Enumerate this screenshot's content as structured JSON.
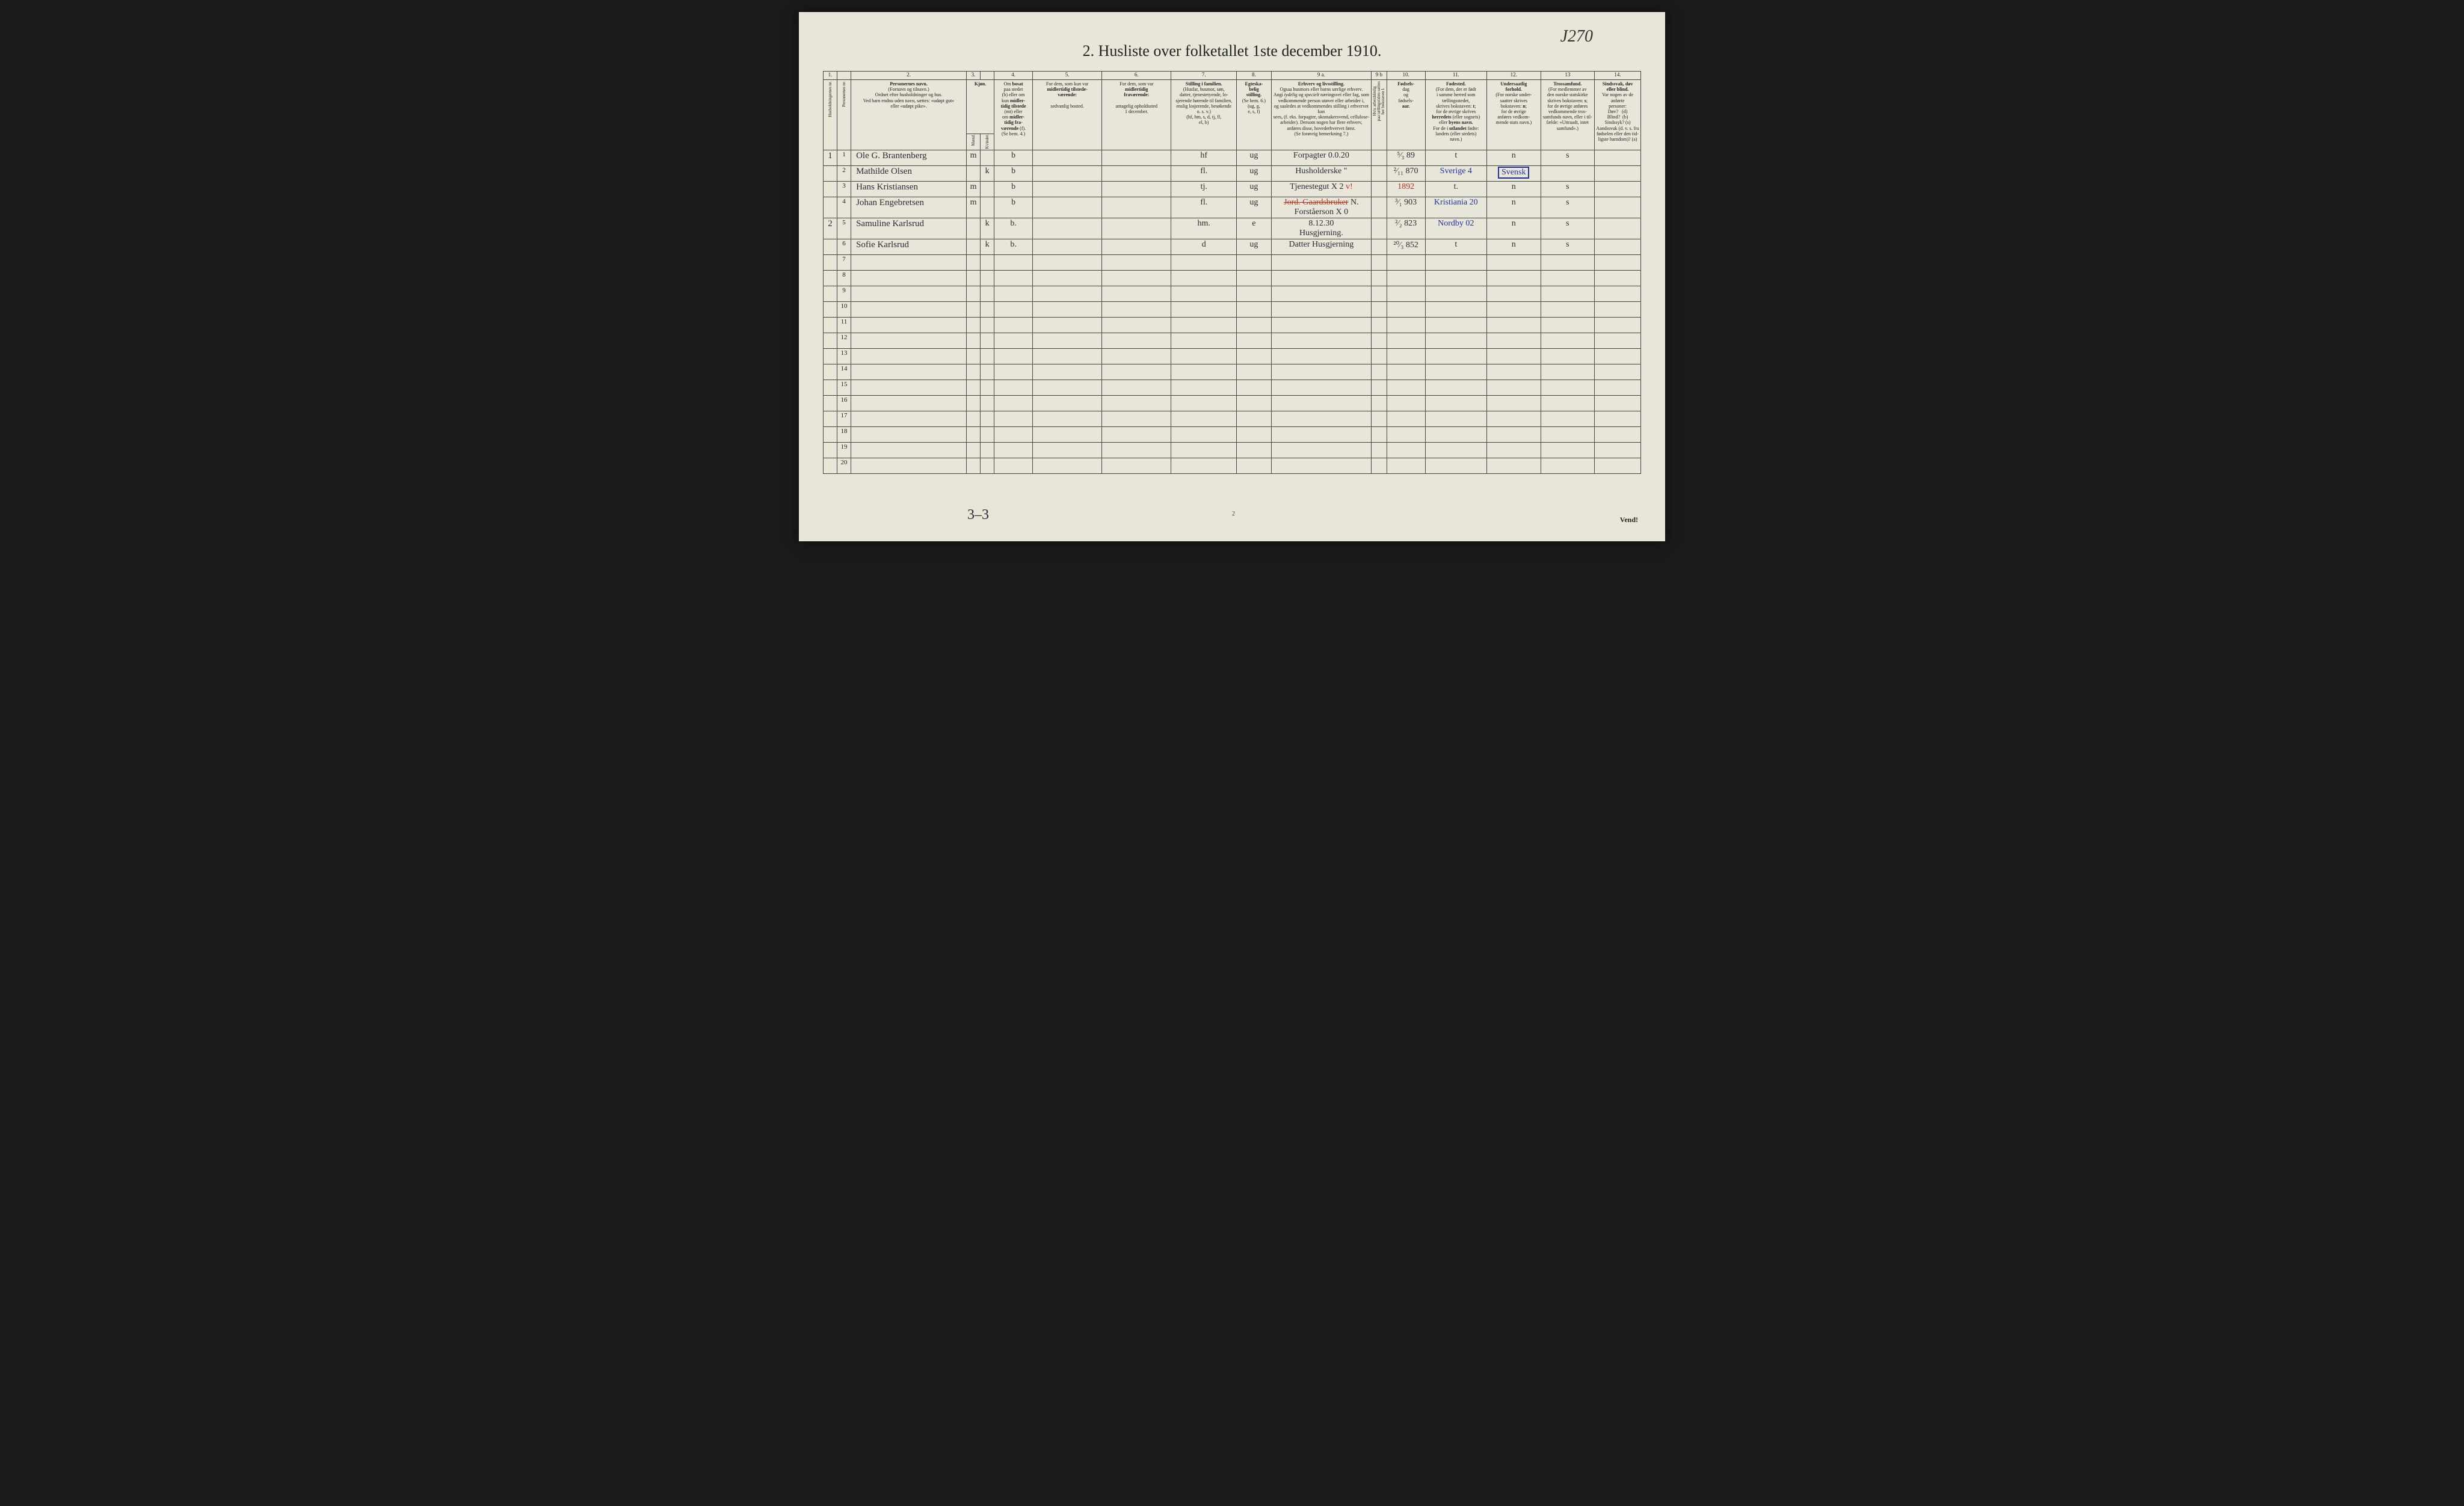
{
  "corner_note": "J270",
  "title": "2.  Husliste over folketallet 1ste december 1910.",
  "footer_note": "3–3",
  "page_num_bottom": "2",
  "vend": "Vend!",
  "col_widths_pct": [
    1.8,
    1.8,
    15,
    1.8,
    1.8,
    5,
    9,
    9,
    8.5,
    4.5,
    13,
    2,
    5,
    8,
    7,
    7,
    6
  ],
  "colnums": [
    "1.",
    "",
    "2.",
    "3.",
    "",
    "4.",
    "5.",
    "6.",
    "7.",
    "8.",
    "9 a.",
    "9 b",
    "10.",
    "11.",
    "12.",
    "13",
    "14."
  ],
  "headers": [
    {
      "text": "Husholdningernes nr.",
      "vertical": true
    },
    {
      "text": "Personernes nr.",
      "vertical": true
    },
    {
      "html": "<b>Personernes navn.</b><br>(Fornavn og tilnavn.)<br>Ordnet efter husholdninger og hus.<br>Ved barn endnu uden navn, sættes: «udøpt gut»<br>eller «udøpt pike»."
    },
    {
      "html": "<b>Kjøn.</b>",
      "colspan": 2
    },
    {
      "html": "Om <b>bosat</b><br>paa stedet<br>(b) eller om<br>kun <b>midler-<br>tidig tilstede</b><br>(mt) eller<br>om <b>midler-<br>tidig fra-<br>værende</b> (f).<br>(Se bem. 4.)"
    },
    {
      "html": "For dem, som kun var<br><b>midlertidig tilstede-<br>værende:</b><br><br>sedvanlig bosted."
    },
    {
      "html": "For dem, som var<br><b>midlertidig<br>fraværende:</b><br><br>antagelig opholdssted<br>1 december."
    },
    {
      "html": "<b>Stilling i familien.</b><br>(Husfar, husmor, søn,<br>datter, tjenestetyende, lo-<br>sjerende hørende til familien,<br>enslig losjerende, besøkende<br>o. s. v.)<br>(hf, hm, s, d, tj, fl,<br>el, b)"
    },
    {
      "html": "<b>Egteska-<br>belig<br>stilling.</b><br>(Se bem. 6.)<br>(ug, g,<br>e, s, f)"
    },
    {
      "html": "<b>Erhverv og livsstilling.</b><br>Ogsaa husmors eller barns særlige erhverv.<br>Angi <i>tydelig</i> og <i>specielt</i> næringsvei eller fag, som<br>vedkommende person utøver eller arbeider i,<br>og saaledes at vedkommendes stilling i erhvervet kan<br>sees, (f. eks. forpagter, skomakersvend, cellulose-<br>arbeider). Dersom nogen har flere erhverv,<br>anføres disse, hovederhvervet først.<br>(Se forøvrig bemerkning 7.)"
    },
    {
      "html": "Hvis arbeidsledig<br>paa tællingstiden sættes<br>her bokstaven l.",
      "vertical": true
    },
    {
      "html": "<b>Fødsels-</b><br>dag<br>og<br>fødsels-<br><b>aar.</b>"
    },
    {
      "html": "<b>Fødested.</b><br>(For dem, der er født<br>i samme herred som<br>tællingsstedet,<br>skrives bokstaven: <b>t</b>;<br>for de øvrige skrives<br><b>herredets</b> (eller sognets)<br>eller <b>byens navn.</b><br>For de i <b>utlandet</b> fødte:<br>landets (eller stedets)<br>navn.)"
    },
    {
      "html": "<b>Undersaatlig<br>forhold.</b><br>(For norske under-<br>saatter skrives<br>bokstaven: <b>n</b>;<br>for de øvrige<br>anføres vedkom-<br>mende stats navn.)"
    },
    {
      "html": "<b>Trossamfund.</b><br>(For medlemmer av<br>den norske statskirke<br>skrives bokstaven: <b>s</b>;<br>for de øvrige anføres<br>vedkommende tros-<br>samfunds navn, eller i til-<br>fælde: «Uttraadt, intet<br>samfund».)"
    },
    {
      "html": "<b>Sindssvak, døv<br>eller blind.</b><br>Var nogen av de anførte<br>personer:<br>Døv?&nbsp;&nbsp;&nbsp;(d)<br>Blind?&nbsp;&nbsp;(b)<br>Sindssyk?&nbsp;(s)<br>Aandssvak (d. v. s. fra<br>fødselen eller den tid-<br>ligste barndom)? (a)"
    }
  ],
  "subheaders": {
    "sex_m": "Mænd.",
    "sex_k": "Kvinder.",
    "sex_mk": "m. | k."
  },
  "rows": [
    {
      "h": "1",
      "n": "1",
      "name": "Ole G. Brantenberg",
      "m": "m",
      "k": "",
      "b": "b",
      "c5": "",
      "c6": "",
      "c7": "hf",
      "c8": "0",
      "c9": "ug",
      "erhv": "Forpagter    0.0.20",
      "l": "",
      "dob": "⁵⁄₃ 89",
      "born": "t",
      "nat": "n",
      "tro": "s",
      "c14": ""
    },
    {
      "h": "",
      "n": "2",
      "name": "Mathilde Olsen",
      "m": "",
      "k": "k",
      "b": "b",
      "c5": "",
      "c6": "",
      "c7": "fl.",
      "c8": "2",
      "c9": "ug",
      "erhv": "Husholderske  \"",
      "l": "",
      "dob": "²⁄₁₁ 870",
      "born": "Sverige 4",
      "born_cls": "blue",
      "nat": "Svensk",
      "nat_cls": "boxed blue",
      "tro": "",
      "c14": ""
    },
    {
      "h": "",
      "n": "3",
      "name": "Hans Kristiansen",
      "m": "m",
      "k": "",
      "b": "b",
      "c5": "",
      "c6": "",
      "c7": "tj.",
      "c8": "0",
      "c9": "ug",
      "erhv": "Tjenestegut  X 2",
      "erhv_note": "v!",
      "erhv_note_cls": "red",
      "l": "",
      "dob": "1892",
      "dob_cls": "red",
      "born": "t.",
      "nat": "n",
      "tro": "s",
      "c14": ""
    },
    {
      "h": "",
      "n": "4",
      "name": "Johan Engebretsen",
      "m": "m",
      "k": "",
      "b": "b",
      "c5": "",
      "c6": "",
      "c7": "fl.",
      "c8": "5",
      "c9": "ug",
      "erhv": "<span class='red strike'>Jord. Gaardsbruker</span> N.<br>Forståerson  X 0",
      "l": "",
      "dob": "³⁄₁ 903",
      "born": "Kristiania 20",
      "born_cls": "blue",
      "nat": "n",
      "tro": "s",
      "c14": ""
    },
    {
      "h": "2",
      "n": "5",
      "name": "Samuline Karlsrud",
      "m": "",
      "k": "k",
      "b": "b.",
      "c5": "",
      "c6": "",
      "c7": "hm.",
      "c8": "0",
      "c9": "e",
      "erhv": "8.12.30<br>Husgjerning.",
      "l": "",
      "dob": "²⁄₂ 823",
      "born": "Nordby 02",
      "born_cls": "blue",
      "nat": "n",
      "tro": "s",
      "c14": ""
    },
    {
      "h": "",
      "n": "6",
      "name": "Sofie   Karlsrud",
      "m": "",
      "k": "k",
      "b": "b.",
      "c5": "",
      "c6": "",
      "c7": "d",
      "c8": "3",
      "c9": "ug",
      "erhv": "Datter Husgjerning",
      "l": "",
      "dob": "²⁰⁄₃ 852",
      "born": "t",
      "nat": "n",
      "tro": "s",
      "c14": ""
    }
  ],
  "blank_rows": 14,
  "six_note": "!!"
}
